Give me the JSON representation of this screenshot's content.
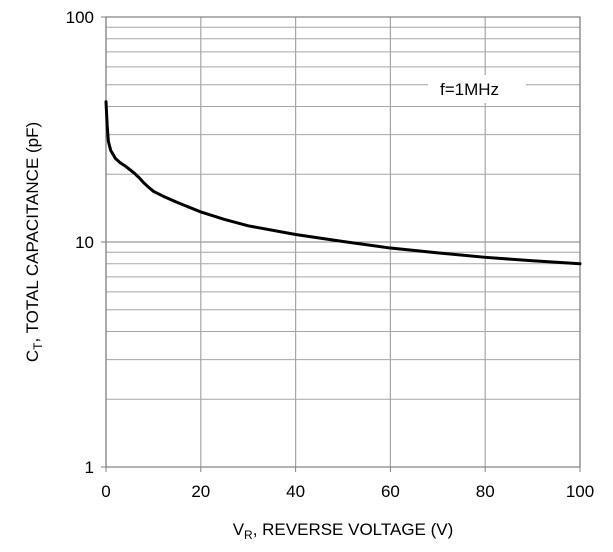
{
  "chart_data": {
    "type": "line",
    "title": "",
    "xlabel": {
      "symbol": "V",
      "subscript": "R",
      "text": ", REVERSE VOLTAGE (V)"
    },
    "ylabel": {
      "symbol": "C",
      "subscript": "T",
      "text": ", TOTAL CAPACITANCE (pF)"
    },
    "xlim": [
      0,
      100
    ],
    "ylim": [
      1,
      100
    ],
    "yscale": "log",
    "xticks": [
      0,
      20,
      40,
      60,
      80,
      100
    ],
    "xtick_labels": [
      "0",
      "20",
      "40",
      "60",
      "80",
      "100"
    ],
    "yticks": [
      1,
      10,
      100
    ],
    "ytick_labels": [
      "1",
      "10",
      "100"
    ],
    "grid": true,
    "legend": "none",
    "annotation": "f=1MHz",
    "colors": {
      "line": "#000000",
      "grid": "#a6a6a6",
      "axes": "#808080"
    },
    "series": [
      {
        "x": [
          0,
          0.25,
          0.5,
          1,
          1.5,
          2,
          3,
          4,
          5,
          6,
          7,
          8,
          9,
          10,
          12,
          15,
          20,
          25,
          30,
          40,
          50,
          60,
          70,
          80,
          90,
          100
        ],
        "y": [
          42,
          33,
          28,
          25.5,
          24.5,
          23.5,
          22.5,
          21.8,
          21,
          20.2,
          19.3,
          18.3,
          17.5,
          16.8,
          16,
          15,
          13.6,
          12.6,
          11.8,
          10.8,
          10.05,
          9.4,
          8.95,
          8.55,
          8.25,
          8
        ]
      }
    ]
  }
}
